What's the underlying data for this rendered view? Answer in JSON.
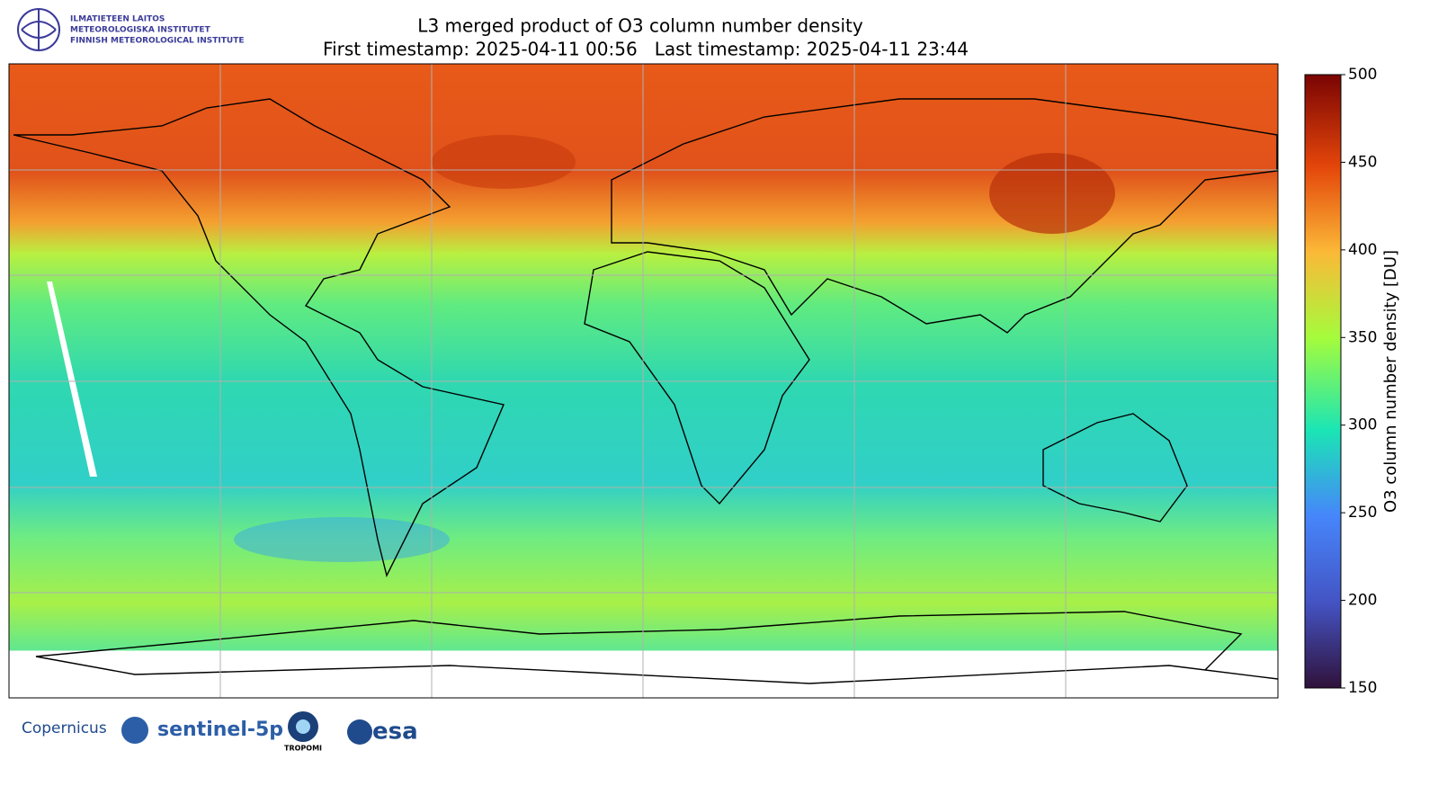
{
  "header": {
    "institute": [
      "ILMATIETEEN LAITOS",
      "METEOROLOGISKA INSTITUTET",
      "FINNISH METEOROLOGICAL INSTITUTE"
    ],
    "title": "L3 merged product of O3 column number density",
    "subtitle": "First timestamp: 2025-04-11 00:56   Last timestamp: 2025-04-11 23:44"
  },
  "colorbar": {
    "label": "O3 column number density [DU]",
    "lim": [
      150,
      500
    ],
    "ticks": [
      150,
      200,
      250,
      300,
      350,
      400,
      450,
      500
    ]
  },
  "footer": {
    "logos": [
      "Copernicus",
      "sentinel-5p",
      "TROPOMI",
      "esa"
    ]
  }
}
